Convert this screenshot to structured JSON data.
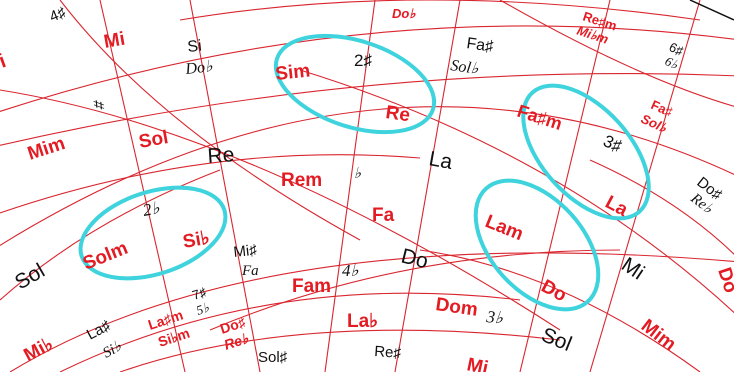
{
  "colors": {
    "line": "#d9262f",
    "key": "#e31b23",
    "note": "#111111",
    "highlight": "#3fd3dd"
  },
  "key_labels": {
    "mi": "Mi",
    "mim": "Mim",
    "sol": "Sol",
    "sim": "Sim",
    "re": "Re",
    "fasm": "Fa♯m",
    "la": "La",
    "rem": "Rem",
    "fa": "Fa",
    "lam": "Lam",
    "solm": "Solm",
    "sib": "Si♭",
    "fam": "Fam",
    "lab": "La♭",
    "dom": "Dom",
    "do": "Do",
    "mim_right": "Mim",
    "mib": "Mi♭",
    "mi_bottom": "Mi",
    "lasm": "La♯m",
    "sibm": "Si♭m",
    "dos": "Do♯",
    "reb": "Re♭",
    "fas": "Fa♯",
    "solb": "Sol♭",
    "res_m": "Re♯m",
    "mibm": "Mi♭m",
    "dob_top": "Do♭",
    "mi_left": "i",
    "do_right": "Do"
  },
  "note_labels": {
    "si": "Si",
    "dob": "Do♭",
    "fas": "Fa♯",
    "solb": "Sol♭",
    "re": "Re",
    "la": "La",
    "sol": "Sol",
    "mis": "Mi♯",
    "fa": "Fa",
    "do": "Do",
    "mi": "Mi",
    "las": "La♯",
    "sib": "Si♭",
    "sols": "Sol♯",
    "res": "Re♯",
    "sol_bottom": "Sol",
    "dos": "Do♯",
    "reb": "Re♭",
    "las_bottom": "La♭",
    "mi_bottom": "Mi"
  },
  "signatures": {
    "s4": "4♯",
    "s2": "2♯",
    "s3": "3♯",
    "s6a": "6♯",
    "s6b": "6♭",
    "s_sharp": "♯",
    "s_flat": "♭",
    "s2b": "2♭",
    "s4b": "4♭",
    "s3b": "3♭",
    "s7": "7♯",
    "s5": "5♭"
  }
}
